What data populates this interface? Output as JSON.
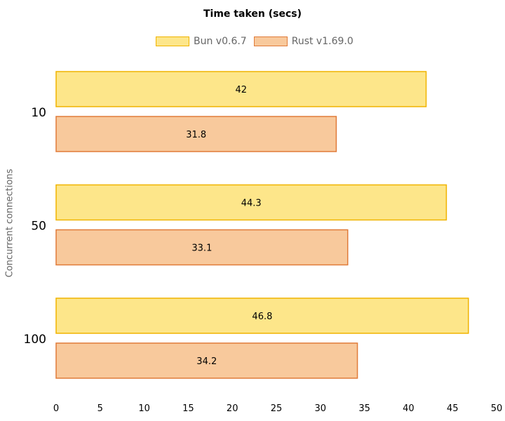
{
  "chart_data": {
    "type": "bar",
    "orientation": "horizontal",
    "title": "Time taken (secs)",
    "xlabel": "",
    "ylabel": "Concurrent connections",
    "categories": [
      "10",
      "50",
      "100"
    ],
    "series": [
      {
        "name": "Bun v0.6.7",
        "values": [
          42,
          44.3,
          46.8
        ],
        "fill": "#fde68a",
        "stroke": "#f0b400"
      },
      {
        "name": "Rust v1.69.0",
        "values": [
          31.8,
          33.1,
          34.2
        ],
        "fill": "#f8c99c",
        "stroke": "#e07b39"
      }
    ],
    "xlim": [
      0,
      50
    ],
    "xticks": [
      0,
      5,
      10,
      15,
      20,
      25,
      30,
      35,
      40,
      45,
      50
    ],
    "grid": false,
    "legend_position": "top"
  }
}
